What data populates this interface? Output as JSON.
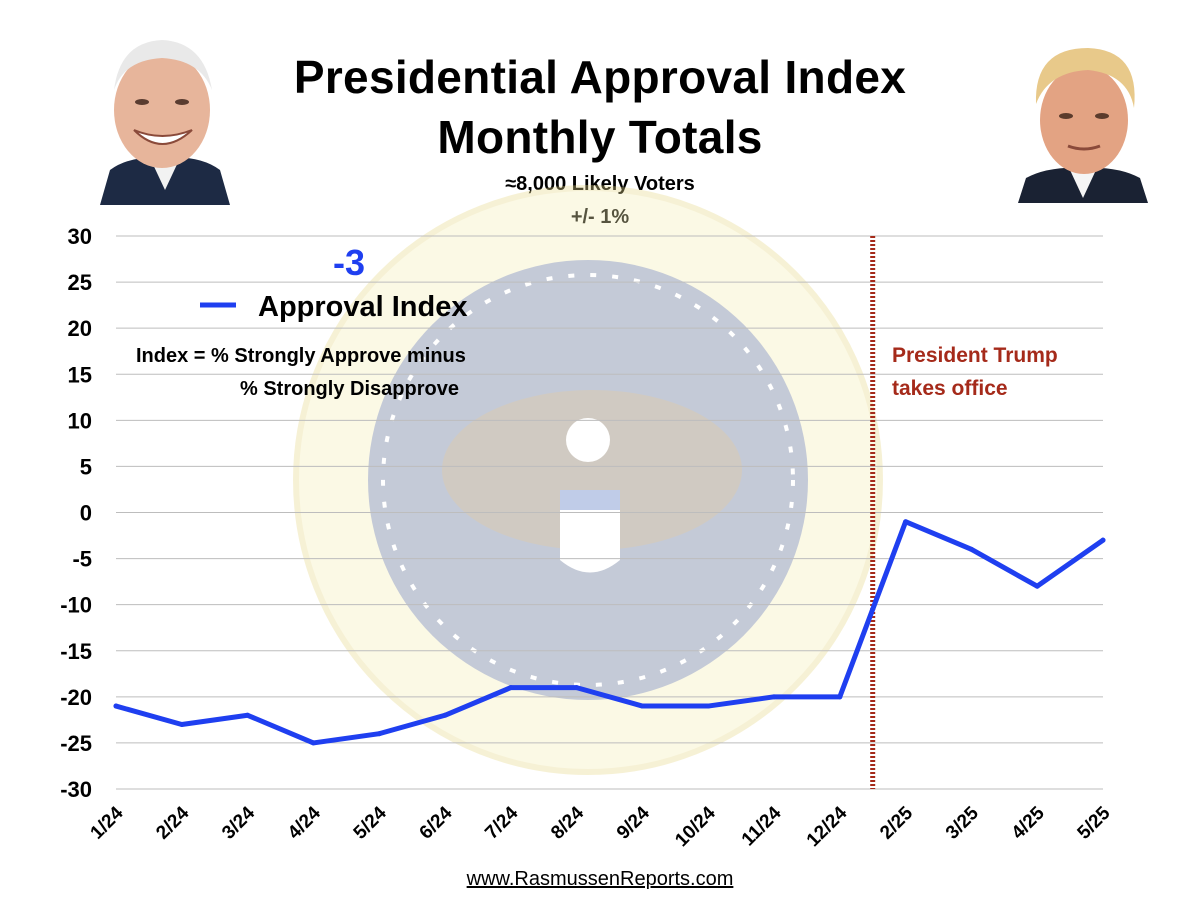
{
  "header": {
    "title_line1": "Presidential Approval Index",
    "title_line2": "Monthly Totals",
    "subtitle_line1": "≈8,000 Likely Voters",
    "subtitle_line2": "+/- 1%"
  },
  "footer": {
    "source": "www.RasmussenReports.com"
  },
  "colors": {
    "series": "#1f3ff0",
    "marker": "#a52a1a",
    "grid": "#bdbdbd"
  },
  "chart_data": {
    "type": "line",
    "categories": [
      "1/24",
      "2/24",
      "3/24",
      "4/24",
      "5/24",
      "6/24",
      "7/24",
      "8/24",
      "9/24",
      "10/24",
      "11/24",
      "12/24",
      "2/25",
      "3/25",
      "4/25",
      "5/25"
    ],
    "yticks": [
      "30",
      "25",
      "20",
      "15",
      "10",
      "5",
      "0",
      "-5",
      "-10",
      "-15",
      "-20",
      "-25",
      "-30"
    ],
    "ylim": [
      -30,
      30
    ],
    "grid": true,
    "series": [
      {
        "name": "Approval Index",
        "values": [
          -21,
          -23,
          -22,
          -25,
          -24,
          -22,
          -19,
          -19,
          -21,
          -21,
          -20,
          -20,
          -1,
          -4,
          -8,
          -3
        ]
      }
    ],
    "legend_label": "Approval Index",
    "legend_position": "top-left",
    "latest_value_label": "-3",
    "definition_line1": "Index = % Strongly Approve minus",
    "definition_line2": "% Strongly Disapprove",
    "event_label_line1": "President Trump",
    "event_label_line2": "takes office",
    "event_position_after_category": "12/24"
  }
}
